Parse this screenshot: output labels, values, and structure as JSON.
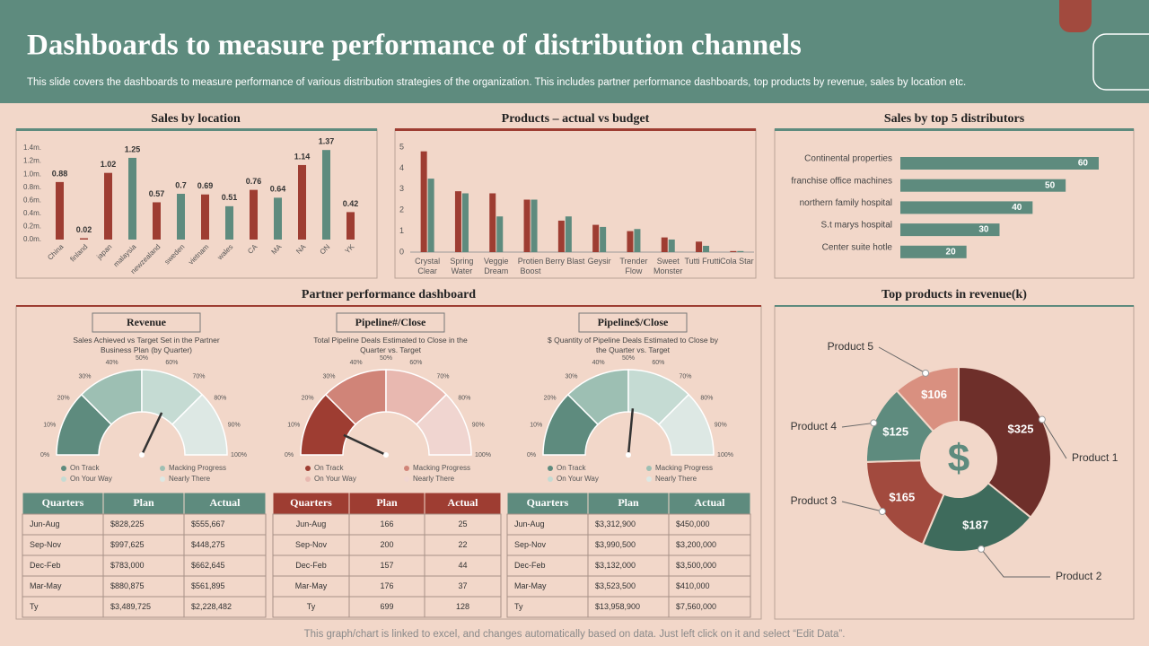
{
  "header": {
    "title": "Dashboards to measure performance of distribution channels",
    "subtitle": "This slide covers the dashboards to measure performance of various distribution strategies of the organization. This includes partner performance dashboards, top products by revenue, sales by location etc."
  },
  "chart_data": [
    {
      "type": "bar",
      "title": "Sales by location",
      "categories": [
        "China",
        "finland",
        "japan",
        "malaysia",
        "newzealand",
        "sweden",
        "vietnam",
        "wales",
        "CA",
        "MA",
        "NA",
        "ON",
        "YK"
      ],
      "values": [
        0.88,
        0.02,
        1.02,
        1.25,
        0.57,
        0.7,
        0.69,
        0.51,
        0.76,
        0.64,
        1.14,
        1.37,
        0.42
      ],
      "colors": [
        "#9e3d32",
        "#9e3d32",
        "#9e3d32",
        "#5e8b7e",
        "#9e3d32",
        "#5e8b7e",
        "#9e3d32",
        "#5e8b7e",
        "#9e3d32",
        "#5e8b7e",
        "#9e3d32",
        "#5e8b7e",
        "#9e3d32"
      ],
      "ylim": [
        0,
        1.4
      ],
      "yticks": [
        {
          "value": 0,
          "label": "0.0m."
        },
        {
          "value": 0.2,
          "label": "0.2m."
        },
        {
          "value": 0.4,
          "label": "0.4m."
        },
        {
          "value": 0.6,
          "label": "0.6m."
        },
        {
          "value": 0.8,
          "label": "0.8m."
        },
        {
          "value": 1.0,
          "label": "1.0m."
        },
        {
          "value": 1.2,
          "label": "1.2m."
        },
        {
          "value": 1.4,
          "label": "1.4m."
        }
      ]
    },
    {
      "type": "grouped-bar",
      "title": "Products  – actual  vs budget",
      "categories": [
        "Crystal Clear",
        "Spring Water",
        "Veggie Dream",
        "Protien Boost",
        "Berry Blast",
        "Geysir",
        "Trender Flow",
        "Sweet Monster",
        "Tutti Frutti",
        "Cola Star"
      ],
      "series": [
        {
          "color": "#9e3d32",
          "values": [
            4.8,
            2.9,
            2.8,
            2.5,
            1.5,
            1.3,
            1.0,
            0.7,
            0.5,
            0.05
          ]
        },
        {
          "color": "#5e8b7e",
          "values": [
            3.5,
            2.8,
            1.7,
            2.5,
            1.7,
            1.2,
            1.1,
            0.6,
            0.3,
            0.05
          ]
        }
      ],
      "ylim": [
        0,
        5
      ],
      "yticks": [
        0,
        1,
        2,
        3,
        4,
        5
      ]
    },
    {
      "type": "hbar",
      "title": "Sales by top 5 distributors",
      "categories": [
        "Continental properties",
        "franchise office machines",
        "northern family hospital",
        "S.t marys hospital",
        "Center suite hotle"
      ],
      "values": [
        60,
        50,
        40,
        30,
        20
      ],
      "color": "#5e8b7e"
    },
    {
      "type": "donut",
      "title": "Top products  in revenue(k)",
      "categories": [
        "Product 1",
        "Product 2",
        "Product 3",
        "Product 4",
        "Product 5"
      ],
      "values": [
        325,
        187,
        165,
        125,
        106
      ],
      "value_labels": [
        "$325",
        "$187",
        "$165",
        "$125",
        "$106"
      ],
      "colors": [
        "#6e2f2a",
        "#3e6b5c",
        "#a24a3e",
        "#5e8b7e",
        "#d99080"
      ]
    }
  ],
  "partner": {
    "title": "Partner performance dashboard",
    "gauge_ticks": [
      {
        "value": 0,
        "label": "0%"
      },
      {
        "value": 10,
        "label": "10%"
      },
      {
        "value": 20,
        "label": "20%"
      },
      {
        "value": 30,
        "label": "30%"
      },
      {
        "value": 40,
        "label": "40%"
      },
      {
        "value": 50,
        "label": "50%"
      },
      {
        "value": 60,
        "label": "60%"
      },
      {
        "value": 70,
        "label": "70%"
      },
      {
        "value": 80,
        "label": "80%"
      },
      {
        "value": 90,
        "label": "90%"
      },
      {
        "value": 100,
        "label": "100%"
      }
    ],
    "legend": [
      "On Track",
      "Macking Progress",
      "On Your Way",
      "Nearly There"
    ],
    "gauges": [
      {
        "title": "Revenue",
        "description": "Sales Achieved vs Target Set in the Partner Business Plan (by Quarter)",
        "segments": [
          25,
          25,
          25,
          25
        ],
        "colors": [
          "#5e8b7e",
          "#9dbfb3",
          "#c5dbd3",
          "#dde8e4"
        ],
        "needle": 64,
        "header_color": "#5e8b7e",
        "table": {
          "header": [
            "Quarters",
            "Plan",
            "Actual"
          ],
          "rows": [
            [
              "Jun-Aug",
              "$828,225",
              "$555,667"
            ],
            [
              "Sep-Nov",
              "$997,625",
              "$448,275"
            ],
            [
              "Dec-Feb",
              "$783,000",
              "$662,645"
            ],
            [
              "Mar-May",
              "$880,875",
              "$561,895"
            ],
            [
              "Ty",
              "$3,489,725",
              "$2,228,482"
            ]
          ]
        }
      },
      {
        "title": "Pipeline#/Close",
        "description": "Total Pipeline Deals Estimated to Close in the Quarter vs. Target",
        "segments": [
          25,
          25,
          25,
          25
        ],
        "colors": [
          "#9e3d32",
          "#d08478",
          "#e8b8b0",
          "#f0d5d0"
        ],
        "needle": 14,
        "header_color": "#9e3d32",
        "table": {
          "header": [
            "Quarters",
            "Plan",
            "Actual"
          ],
          "rows": [
            [
              "Jun-Aug",
              "166",
              "25"
            ],
            [
              "Sep-Nov",
              "200",
              "22"
            ],
            [
              "Dec-Feb",
              "157",
              "44"
            ],
            [
              "Mar-May",
              "176",
              "37"
            ],
            [
              "Ty",
              "699",
              "128"
            ]
          ]
        }
      },
      {
        "title": "Pipeline$/Close",
        "description": "$ Quantity of Pipeline Deals Estimated to Close by the Quarter vs. Target",
        "segments": [
          25,
          25,
          25,
          25
        ],
        "colors": [
          "#5e8b7e",
          "#9dbfb3",
          "#c5dbd3",
          "#dde8e4"
        ],
        "needle": 53,
        "header_color": "#5e8b7e",
        "table": {
          "header": [
            "Quarters",
            "Plan",
            "Actual"
          ],
          "rows": [
            [
              "Jun-Aug",
              "$3,312,900",
              "$450,000"
            ],
            [
              "Sep-Nov",
              "$3,990,500",
              "$3,200,000"
            ],
            [
              "Dec-Feb",
              "$3,132,000",
              "$3,500,000"
            ],
            [
              "Mar-May",
              "$3,523,500",
              "$410,000"
            ],
            [
              "Ty",
              "$13,958,900",
              "$7,560,000"
            ]
          ]
        }
      }
    ]
  },
  "footer": "This graph/chart is linked to excel,  and changes automatically based on data. Just left click on it and select “Edit Data”."
}
